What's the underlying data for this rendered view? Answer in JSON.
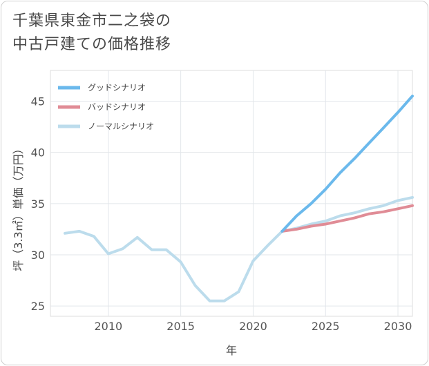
{
  "title_lines": [
    "千葉県東金市二之袋の",
    "中古戸建ての価格推移"
  ],
  "chart_data": {
    "type": "line",
    "xlabel": "年",
    "ylabel": "坪（3.3㎡）単価（万円）",
    "xlim": [
      2006,
      2031
    ],
    "ylim": [
      24,
      48
    ],
    "xticks": [
      2010,
      2015,
      2020,
      2025,
      2030
    ],
    "yticks": [
      25,
      30,
      35,
      40,
      45
    ],
    "grid": true,
    "legend_position": "top-left",
    "series": [
      {
        "name": "グッドシナリオ",
        "color": "#6bb9ec",
        "x": [
          2022,
          2023,
          2024,
          2025,
          2026,
          2027,
          2028,
          2029,
          2030,
          2031
        ],
        "values": [
          32.3,
          33.8,
          35.0,
          36.4,
          38.0,
          39.4,
          40.9,
          42.4,
          43.9,
          45.5
        ]
      },
      {
        "name": "バッドシナリオ",
        "color": "#e08c96",
        "x": [
          2022,
          2023,
          2024,
          2025,
          2026,
          2027,
          2028,
          2029,
          2030,
          2031
        ],
        "values": [
          32.3,
          32.5,
          32.8,
          33.0,
          33.3,
          33.6,
          34.0,
          34.2,
          34.5,
          34.8
        ]
      },
      {
        "name": "ノーマルシナリオ",
        "color": "#bcdcec",
        "x": [
          2007,
          2008,
          2009,
          2010,
          2011,
          2012,
          2013,
          2014,
          2015,
          2016,
          2017,
          2018,
          2019,
          2020,
          2021,
          2022,
          2023,
          2024,
          2025,
          2026,
          2027,
          2028,
          2029,
          2030,
          2031
        ],
        "values": [
          32.1,
          32.3,
          31.8,
          30.1,
          30.6,
          31.7,
          30.5,
          30.5,
          29.3,
          27.0,
          25.5,
          25.5,
          26.4,
          29.4,
          30.9,
          32.3,
          32.6,
          33.0,
          33.3,
          33.8,
          34.1,
          34.5,
          34.8,
          35.3,
          35.6
        ]
      }
    ]
  }
}
